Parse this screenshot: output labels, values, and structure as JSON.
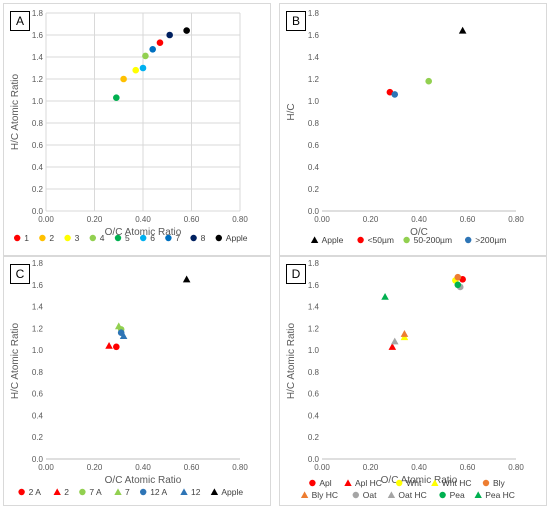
{
  "chart_data": [
    {
      "panel": "A",
      "type": "scatter",
      "xlabel": "O/C Atomic Ratio",
      "ylabel": "H/C Atomic Ratio",
      "xlim": [
        0,
        0.8
      ],
      "ylim": [
        0,
        1.8
      ],
      "x_ticks": [
        "0.00",
        "0.20",
        "0.40",
        "0.60",
        "0.80"
      ],
      "y_ticks": [
        "0.0",
        "0.2",
        "0.4",
        "0.6",
        "0.8",
        "1.0",
        "1.2",
        "1.4",
        "1.6",
        "1.8"
      ],
      "grid": true,
      "legend_position": "bottom",
      "series": [
        {
          "name": "1",
          "color": "#ff0000",
          "marker": "circle",
          "points": [
            [
              0.47,
              1.53
            ]
          ]
        },
        {
          "name": "2",
          "color": "#ffc000",
          "marker": "circle",
          "points": [
            [
              0.32,
              1.2
            ]
          ]
        },
        {
          "name": "3",
          "color": "#ffff00",
          "marker": "circle",
          "points": [
            [
              0.37,
              1.28
            ]
          ]
        },
        {
          "name": "4",
          "color": "#92d050",
          "marker": "circle",
          "points": [
            [
              0.41,
              1.41
            ]
          ]
        },
        {
          "name": "5",
          "color": "#00b050",
          "marker": "circle",
          "points": [
            [
              0.29,
              1.03
            ]
          ]
        },
        {
          "name": "6",
          "color": "#00b0f0",
          "marker": "circle",
          "points": [
            [
              0.4,
              1.3
            ]
          ]
        },
        {
          "name": "7",
          "color": "#0070c0",
          "marker": "circle",
          "points": [
            [
              0.44,
              1.47
            ]
          ]
        },
        {
          "name": "8",
          "color": "#002060",
          "marker": "circle",
          "points": [
            [
              0.51,
              1.6
            ]
          ]
        },
        {
          "name": "Apple",
          "color": "#000000",
          "marker": "circle",
          "points": [
            [
              0.58,
              1.64
            ]
          ]
        }
      ]
    },
    {
      "panel": "B",
      "type": "scatter",
      "xlabel": "O/C",
      "ylabel": "H/C",
      "xlim": [
        0,
        0.8
      ],
      "ylim": [
        0,
        1.8
      ],
      "x_ticks": [
        "0.00",
        "0.20",
        "0.40",
        "0.60",
        "0.80"
      ],
      "y_ticks": [
        "0.0",
        "0.2",
        "0.4",
        "0.6",
        "0.8",
        "1.0",
        "1.2",
        "1.4",
        "1.6",
        "1.8"
      ],
      "grid": false,
      "legend_position": "bottom",
      "series": [
        {
          "name": "Apple",
          "color": "#000000",
          "marker": "triangle",
          "points": [
            [
              0.58,
              1.64
            ]
          ]
        },
        {
          "name": "<50µm",
          "color": "#ff0000",
          "marker": "circle",
          "points": [
            [
              0.28,
              1.08
            ]
          ]
        },
        {
          "name": "50-200µm",
          "color": "#92d050",
          "marker": "circle",
          "points": [
            [
              0.44,
              1.18
            ]
          ]
        },
        {
          "name": ">200µm",
          "color": "#2e75b6",
          "marker": "circle",
          "points": [
            [
              0.3,
              1.06
            ]
          ]
        }
      ]
    },
    {
      "panel": "C",
      "type": "scatter",
      "xlabel": "O/C Atomic Ratio",
      "ylabel": "H/C Atomic Ratio",
      "xlim": [
        0,
        0.8
      ],
      "ylim": [
        0,
        1.8
      ],
      "x_ticks": [
        "0.00",
        "0.20",
        "0.40",
        "0.60",
        "0.80"
      ],
      "y_ticks": [
        "0.0",
        "0.2",
        "0.4",
        "0.6",
        "0.8",
        "1.0",
        "1.2",
        "1.4",
        "1.6",
        "1.8"
      ],
      "grid": false,
      "legend_position": "bottom",
      "series": [
        {
          "name": "2 A",
          "color": "#ff0000",
          "marker": "circle",
          "points": [
            [
              0.29,
              1.03
            ]
          ]
        },
        {
          "name": "2",
          "color": "#ff0000",
          "marker": "triangle",
          "points": [
            [
              0.26,
              1.04
            ]
          ]
        },
        {
          "name": "7 A",
          "color": "#92d050",
          "marker": "circle",
          "points": [
            [
              0.31,
              1.19
            ]
          ]
        },
        {
          "name": "7",
          "color": "#92d050",
          "marker": "triangle",
          "points": [
            [
              0.3,
              1.22
            ]
          ]
        },
        {
          "name": "12 A",
          "color": "#2e75b6",
          "marker": "circle",
          "points": [
            [
              0.31,
              1.16
            ]
          ]
        },
        {
          "name": "12",
          "color": "#2e75b6",
          "marker": "triangle",
          "points": [
            [
              0.32,
              1.13
            ]
          ]
        },
        {
          "name": "Apple",
          "color": "#000000",
          "marker": "triangle",
          "points": [
            [
              0.58,
              1.65
            ]
          ]
        }
      ]
    },
    {
      "panel": "D",
      "type": "scatter",
      "xlabel": "O/C Atomic Ratio",
      "ylabel": "H/C Atomic Ratio",
      "xlim": [
        0,
        0.8
      ],
      "ylim": [
        0,
        1.8
      ],
      "x_ticks": [
        "0.00",
        "0.20",
        "0.40",
        "0.60",
        "0.80"
      ],
      "y_ticks": [
        "0.0",
        "0.2",
        "0.4",
        "0.6",
        "0.8",
        "1.0",
        "1.2",
        "1.4",
        "1.6",
        "1.8"
      ],
      "grid": false,
      "legend_position": "bottom",
      "series": [
        {
          "name": "Apl",
          "color": "#ff0000",
          "marker": "circle",
          "points": [
            [
              0.58,
              1.65
            ]
          ]
        },
        {
          "name": "Apl HC",
          "color": "#ff0000",
          "marker": "triangle",
          "points": [
            [
              0.29,
              1.03
            ]
          ]
        },
        {
          "name": "Wht",
          "color": "#ffff00",
          "marker": "circle",
          "points": [
            [
              0.55,
              1.64
            ]
          ]
        },
        {
          "name": "Wht HC",
          "color": "#ffff00",
          "marker": "triangle",
          "points": [
            [
              0.34,
              1.12
            ]
          ]
        },
        {
          "name": "Bly",
          "color": "#ed7d31",
          "marker": "circle",
          "points": [
            [
              0.56,
              1.67
            ]
          ]
        },
        {
          "name": "Bly HC",
          "color": "#ed7d31",
          "marker": "triangle",
          "points": [
            [
              0.34,
              1.15
            ]
          ]
        },
        {
          "name": "Oat",
          "color": "#a5a5a5",
          "marker": "circle",
          "points": [
            [
              0.57,
              1.58
            ]
          ]
        },
        {
          "name": "Oat HC",
          "color": "#a5a5a5",
          "marker": "triangle",
          "points": [
            [
              0.3,
              1.08
            ]
          ]
        },
        {
          "name": "Pea",
          "color": "#00b050",
          "marker": "circle",
          "points": [
            [
              0.56,
              1.6
            ]
          ]
        },
        {
          "name": "Pea HC",
          "color": "#00b050",
          "marker": "triangle",
          "points": [
            [
              0.26,
              1.49
            ]
          ]
        }
      ]
    }
  ]
}
